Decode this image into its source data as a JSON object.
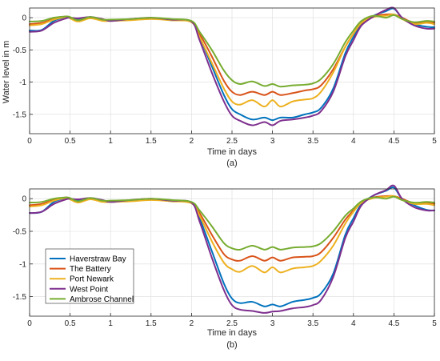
{
  "chart_data": [
    {
      "type": "line",
      "panel_label": "(a)",
      "xlabel": "Time in days",
      "ylabel": "Water level in m",
      "xlim": [
        0,
        5
      ],
      "ylim": [
        -1.8,
        0.15
      ],
      "xticks": [
        0,
        0.5,
        1,
        1.5,
        2,
        2.5,
        3,
        3.5,
        4,
        4.5,
        5
      ],
      "xtick_labels": [
        "0",
        "0.5",
        "1",
        "1.5",
        "2",
        "2.5",
        "3",
        "3.5",
        "4",
        "4.5",
        "5"
      ],
      "yticks": [
        0,
        -0.5,
        -1,
        -1.5
      ],
      "ytick_labels": [
        "0",
        "-0.5",
        "-1",
        "-1.5"
      ],
      "grid": true,
      "series": [
        {
          "name": "Haverstraw Bay",
          "color": "#0072BD",
          "x": [
            0,
            0.15,
            0.3,
            0.45,
            0.5,
            0.6,
            0.75,
            0.9,
            1.0,
            1.25,
            1.5,
            1.75,
            2.0,
            2.1,
            2.25,
            2.4,
            2.5,
            2.6,
            2.75,
            2.9,
            3.0,
            3.1,
            3.25,
            3.4,
            3.5,
            3.6,
            3.75,
            3.9,
            4.0,
            4.1,
            4.25,
            4.4,
            4.5,
            4.6,
            4.75,
            4.9,
            5.0
          ],
          "y": [
            -0.2,
            -0.19,
            -0.05,
            0.01,
            0.0,
            -0.03,
            0.01,
            -0.03,
            -0.05,
            -0.03,
            -0.01,
            -0.04,
            -0.06,
            -0.3,
            -0.75,
            -1.2,
            -1.42,
            -1.5,
            -1.58,
            -1.55,
            -1.59,
            -1.55,
            -1.55,
            -1.5,
            -1.47,
            -1.4,
            -1.1,
            -0.55,
            -0.3,
            -0.1,
            0.03,
            0.1,
            0.14,
            0.0,
            -0.1,
            -0.14,
            -0.15
          ]
        },
        {
          "name": "The Battery",
          "color": "#D95319",
          "x": [
            0,
            0.15,
            0.3,
            0.45,
            0.5,
            0.6,
            0.75,
            0.9,
            1.0,
            1.25,
            1.5,
            1.75,
            2.0,
            2.1,
            2.25,
            2.4,
            2.5,
            2.6,
            2.75,
            2.9,
            3.0,
            3.1,
            3.25,
            3.4,
            3.5,
            3.6,
            3.75,
            3.9,
            4.0,
            4.1,
            4.25,
            4.4,
            4.5,
            4.6,
            4.75,
            4.9,
            5.0
          ],
          "y": [
            -0.1,
            -0.08,
            -0.02,
            0.02,
            0.0,
            -0.05,
            0.0,
            -0.04,
            -0.04,
            -0.03,
            -0.01,
            -0.03,
            -0.06,
            -0.25,
            -0.6,
            -0.98,
            -1.15,
            -1.2,
            -1.15,
            -1.2,
            -1.15,
            -1.2,
            -1.17,
            -1.13,
            -1.11,
            -1.05,
            -0.8,
            -0.45,
            -0.25,
            -0.08,
            0.02,
            0.05,
            0.05,
            0.0,
            -0.08,
            -0.06,
            -0.08
          ]
        },
        {
          "name": "Port Newark",
          "color": "#EDB120",
          "x": [
            0,
            0.15,
            0.3,
            0.45,
            0.5,
            0.6,
            0.75,
            0.9,
            1.0,
            1.25,
            1.5,
            1.75,
            2.0,
            2.1,
            2.25,
            2.4,
            2.5,
            2.6,
            2.75,
            2.9,
            3.0,
            3.1,
            3.25,
            3.4,
            3.5,
            3.6,
            3.75,
            3.9,
            4.0,
            4.1,
            4.25,
            4.4,
            4.5,
            4.6,
            4.75,
            4.9,
            5.0
          ],
          "y": [
            -0.12,
            -0.1,
            -0.03,
            0.01,
            -0.01,
            -0.06,
            -0.01,
            -0.05,
            -0.05,
            -0.04,
            -0.02,
            -0.04,
            -0.07,
            -0.3,
            -0.7,
            -1.1,
            -1.3,
            -1.35,
            -1.28,
            -1.38,
            -1.28,
            -1.38,
            -1.3,
            -1.27,
            -1.25,
            -1.15,
            -0.85,
            -0.45,
            -0.25,
            -0.08,
            0.01,
            0.03,
            0.05,
            -0.02,
            -0.1,
            -0.08,
            -0.1
          ]
        },
        {
          "name": "West Point",
          "color": "#7E2F8E",
          "x": [
            0,
            0.15,
            0.3,
            0.45,
            0.5,
            0.6,
            0.75,
            0.9,
            1.0,
            1.25,
            1.5,
            1.75,
            2.0,
            2.1,
            2.25,
            2.4,
            2.5,
            2.6,
            2.75,
            2.9,
            3.0,
            3.1,
            3.25,
            3.4,
            3.5,
            3.6,
            3.75,
            3.9,
            4.0,
            4.1,
            4.25,
            4.4,
            4.5,
            4.6,
            4.75,
            4.9,
            5.0
          ],
          "y": [
            -0.22,
            -0.2,
            -0.08,
            -0.01,
            0.0,
            -0.01,
            0.01,
            -0.02,
            -0.05,
            -0.02,
            0.0,
            -0.03,
            -0.06,
            -0.35,
            -0.85,
            -1.3,
            -1.52,
            -1.6,
            -1.67,
            -1.62,
            -1.67,
            -1.6,
            -1.58,
            -1.55,
            -1.52,
            -1.45,
            -1.15,
            -0.6,
            -0.35,
            -0.12,
            0.02,
            0.12,
            0.15,
            0.0,
            -0.12,
            -0.17,
            -0.17
          ]
        },
        {
          "name": "Ambrose Channel",
          "color": "#77AC30",
          "x": [
            0,
            0.15,
            0.3,
            0.45,
            0.5,
            0.6,
            0.75,
            0.9,
            1.0,
            1.25,
            1.5,
            1.75,
            2.0,
            2.1,
            2.25,
            2.4,
            2.5,
            2.6,
            2.75,
            2.9,
            3.0,
            3.1,
            3.25,
            3.4,
            3.5,
            3.6,
            3.75,
            3.9,
            4.0,
            4.1,
            4.25,
            4.4,
            4.5,
            4.6,
            4.75,
            4.9,
            5.0
          ],
          "y": [
            -0.06,
            -0.05,
            0.0,
            0.02,
            0.01,
            -0.04,
            0.01,
            -0.03,
            -0.03,
            -0.02,
            0.0,
            -0.02,
            -0.05,
            -0.22,
            -0.5,
            -0.82,
            -0.97,
            -1.03,
            -0.99,
            -1.06,
            -1.03,
            -1.07,
            -1.05,
            -1.04,
            -1.02,
            -0.95,
            -0.72,
            -0.38,
            -0.2,
            -0.05,
            0.03,
            0.0,
            0.04,
            -0.02,
            -0.07,
            -0.05,
            -0.06
          ]
        }
      ]
    },
    {
      "type": "line",
      "panel_label": "(b)",
      "xlabel": "Time in days",
      "ylabel": "",
      "xlim": [
        0,
        5
      ],
      "ylim": [
        -1.8,
        0.15
      ],
      "xticks": [
        0,
        0.5,
        1,
        1.5,
        2,
        2.5,
        3,
        3.5,
        4,
        4.5,
        5
      ],
      "xtick_labels": [
        "0",
        "0.5",
        "1",
        "1.5",
        "2",
        "2.5",
        "3",
        "3.5",
        "4",
        "4.5",
        "5"
      ],
      "yticks": [
        0,
        -0.5,
        -1,
        -1.5
      ],
      "ytick_labels": [
        "0",
        "-0.5",
        "-1",
        "-1.5"
      ],
      "grid": true,
      "legend_position": "bottom-left",
      "series": [
        {
          "name": "Haverstraw Bay",
          "color": "#0072BD",
          "x": [
            0,
            0.15,
            0.3,
            0.45,
            0.5,
            0.6,
            0.75,
            0.9,
            1.0,
            1.25,
            1.5,
            1.75,
            2.0,
            2.1,
            2.25,
            2.4,
            2.5,
            2.6,
            2.75,
            2.9,
            3.0,
            3.1,
            3.25,
            3.4,
            3.5,
            3.6,
            3.75,
            3.9,
            4.0,
            4.1,
            4.25,
            4.4,
            4.5,
            4.6,
            4.75,
            4.9,
            5.0
          ],
          "y": [
            -0.22,
            -0.2,
            -0.05,
            0.01,
            0.0,
            -0.03,
            0.01,
            -0.03,
            -0.05,
            -0.03,
            -0.01,
            -0.04,
            -0.06,
            -0.3,
            -0.8,
            -1.3,
            -1.53,
            -1.6,
            -1.58,
            -1.65,
            -1.62,
            -1.65,
            -1.58,
            -1.55,
            -1.52,
            -1.45,
            -1.15,
            -0.55,
            -0.3,
            -0.08,
            0.05,
            0.12,
            0.17,
            0.0,
            -0.1,
            -0.17,
            -0.18
          ]
        },
        {
          "name": "The Battery",
          "color": "#D95319",
          "x": [
            0,
            0.15,
            0.3,
            0.45,
            0.5,
            0.6,
            0.75,
            0.9,
            1.0,
            1.25,
            1.5,
            1.75,
            2.0,
            2.1,
            2.25,
            2.4,
            2.5,
            2.6,
            2.75,
            2.9,
            3.0,
            3.1,
            3.25,
            3.4,
            3.5,
            3.6,
            3.75,
            3.9,
            4.0,
            4.1,
            4.25,
            4.4,
            4.5,
            4.6,
            4.75,
            4.9,
            5.0
          ],
          "y": [
            -0.1,
            -0.08,
            -0.02,
            0.02,
            0.0,
            -0.05,
            0.0,
            -0.04,
            -0.04,
            -0.03,
            -0.01,
            -0.03,
            -0.06,
            -0.22,
            -0.55,
            -0.85,
            -0.93,
            -0.95,
            -0.88,
            -0.95,
            -0.9,
            -0.95,
            -0.9,
            -0.89,
            -0.88,
            -0.82,
            -0.6,
            -0.32,
            -0.18,
            -0.05,
            0.02,
            0.04,
            0.04,
            0.0,
            -0.07,
            -0.06,
            -0.08
          ]
        },
        {
          "name": "Port Newark",
          "color": "#EDB120",
          "x": [
            0,
            0.15,
            0.3,
            0.45,
            0.5,
            0.6,
            0.75,
            0.9,
            1.0,
            1.25,
            1.5,
            1.75,
            2.0,
            2.1,
            2.25,
            2.4,
            2.5,
            2.6,
            2.75,
            2.9,
            3.0,
            3.1,
            3.25,
            3.4,
            3.5,
            3.6,
            3.75,
            3.9,
            4.0,
            4.1,
            4.25,
            4.4,
            4.5,
            4.6,
            4.75,
            4.9,
            5.0
          ],
          "y": [
            -0.12,
            -0.1,
            -0.03,
            0.01,
            -0.01,
            -0.06,
            -0.01,
            -0.05,
            -0.05,
            -0.04,
            -0.02,
            -0.04,
            -0.07,
            -0.26,
            -0.65,
            -0.98,
            -1.08,
            -1.12,
            -1.03,
            -1.13,
            -1.05,
            -1.13,
            -1.07,
            -1.05,
            -1.03,
            -0.95,
            -0.72,
            -0.38,
            -0.2,
            -0.06,
            0.01,
            0.03,
            0.04,
            -0.02,
            -0.08,
            -0.08,
            -0.1
          ]
        },
        {
          "name": "West Point",
          "color": "#7E2F8E",
          "x": [
            0,
            0.15,
            0.3,
            0.45,
            0.5,
            0.6,
            0.75,
            0.9,
            1.0,
            1.25,
            1.5,
            1.75,
            2.0,
            2.1,
            2.25,
            2.4,
            2.5,
            2.6,
            2.75,
            2.9,
            3.0,
            3.1,
            3.25,
            3.4,
            3.5,
            3.6,
            3.75,
            3.9,
            4.0,
            4.1,
            4.25,
            4.4,
            4.5,
            4.6,
            4.75,
            4.9,
            5.0
          ],
          "y": [
            -0.22,
            -0.2,
            -0.08,
            -0.01,
            0.0,
            -0.01,
            0.01,
            -0.02,
            -0.05,
            -0.02,
            0.0,
            -0.03,
            -0.06,
            -0.35,
            -0.9,
            -1.4,
            -1.63,
            -1.7,
            -1.72,
            -1.75,
            -1.73,
            -1.72,
            -1.68,
            -1.66,
            -1.63,
            -1.55,
            -1.2,
            -0.6,
            -0.35,
            -0.1,
            0.05,
            0.13,
            0.2,
            0.0,
            -0.13,
            -0.18,
            -0.18
          ]
        },
        {
          "name": "Ambrose Channel",
          "color": "#77AC30",
          "x": [
            0,
            0.15,
            0.3,
            0.45,
            0.5,
            0.6,
            0.75,
            0.9,
            1.0,
            1.25,
            1.5,
            1.75,
            2.0,
            2.1,
            2.25,
            2.4,
            2.5,
            2.6,
            2.75,
            2.9,
            3.0,
            3.1,
            3.25,
            3.4,
            3.5,
            3.6,
            3.75,
            3.9,
            4.0,
            4.1,
            4.25,
            4.4,
            4.5,
            4.6,
            4.75,
            4.9,
            5.0
          ],
          "y": [
            -0.06,
            -0.05,
            0.0,
            0.02,
            0.01,
            -0.04,
            0.01,
            -0.03,
            -0.03,
            -0.02,
            0.0,
            -0.02,
            -0.05,
            -0.18,
            -0.42,
            -0.68,
            -0.76,
            -0.78,
            -0.72,
            -0.78,
            -0.74,
            -0.78,
            -0.75,
            -0.74,
            -0.73,
            -0.68,
            -0.5,
            -0.26,
            -0.15,
            -0.04,
            0.02,
            0.0,
            0.03,
            -0.02,
            -0.06,
            -0.05,
            -0.06
          ]
        }
      ]
    }
  ]
}
